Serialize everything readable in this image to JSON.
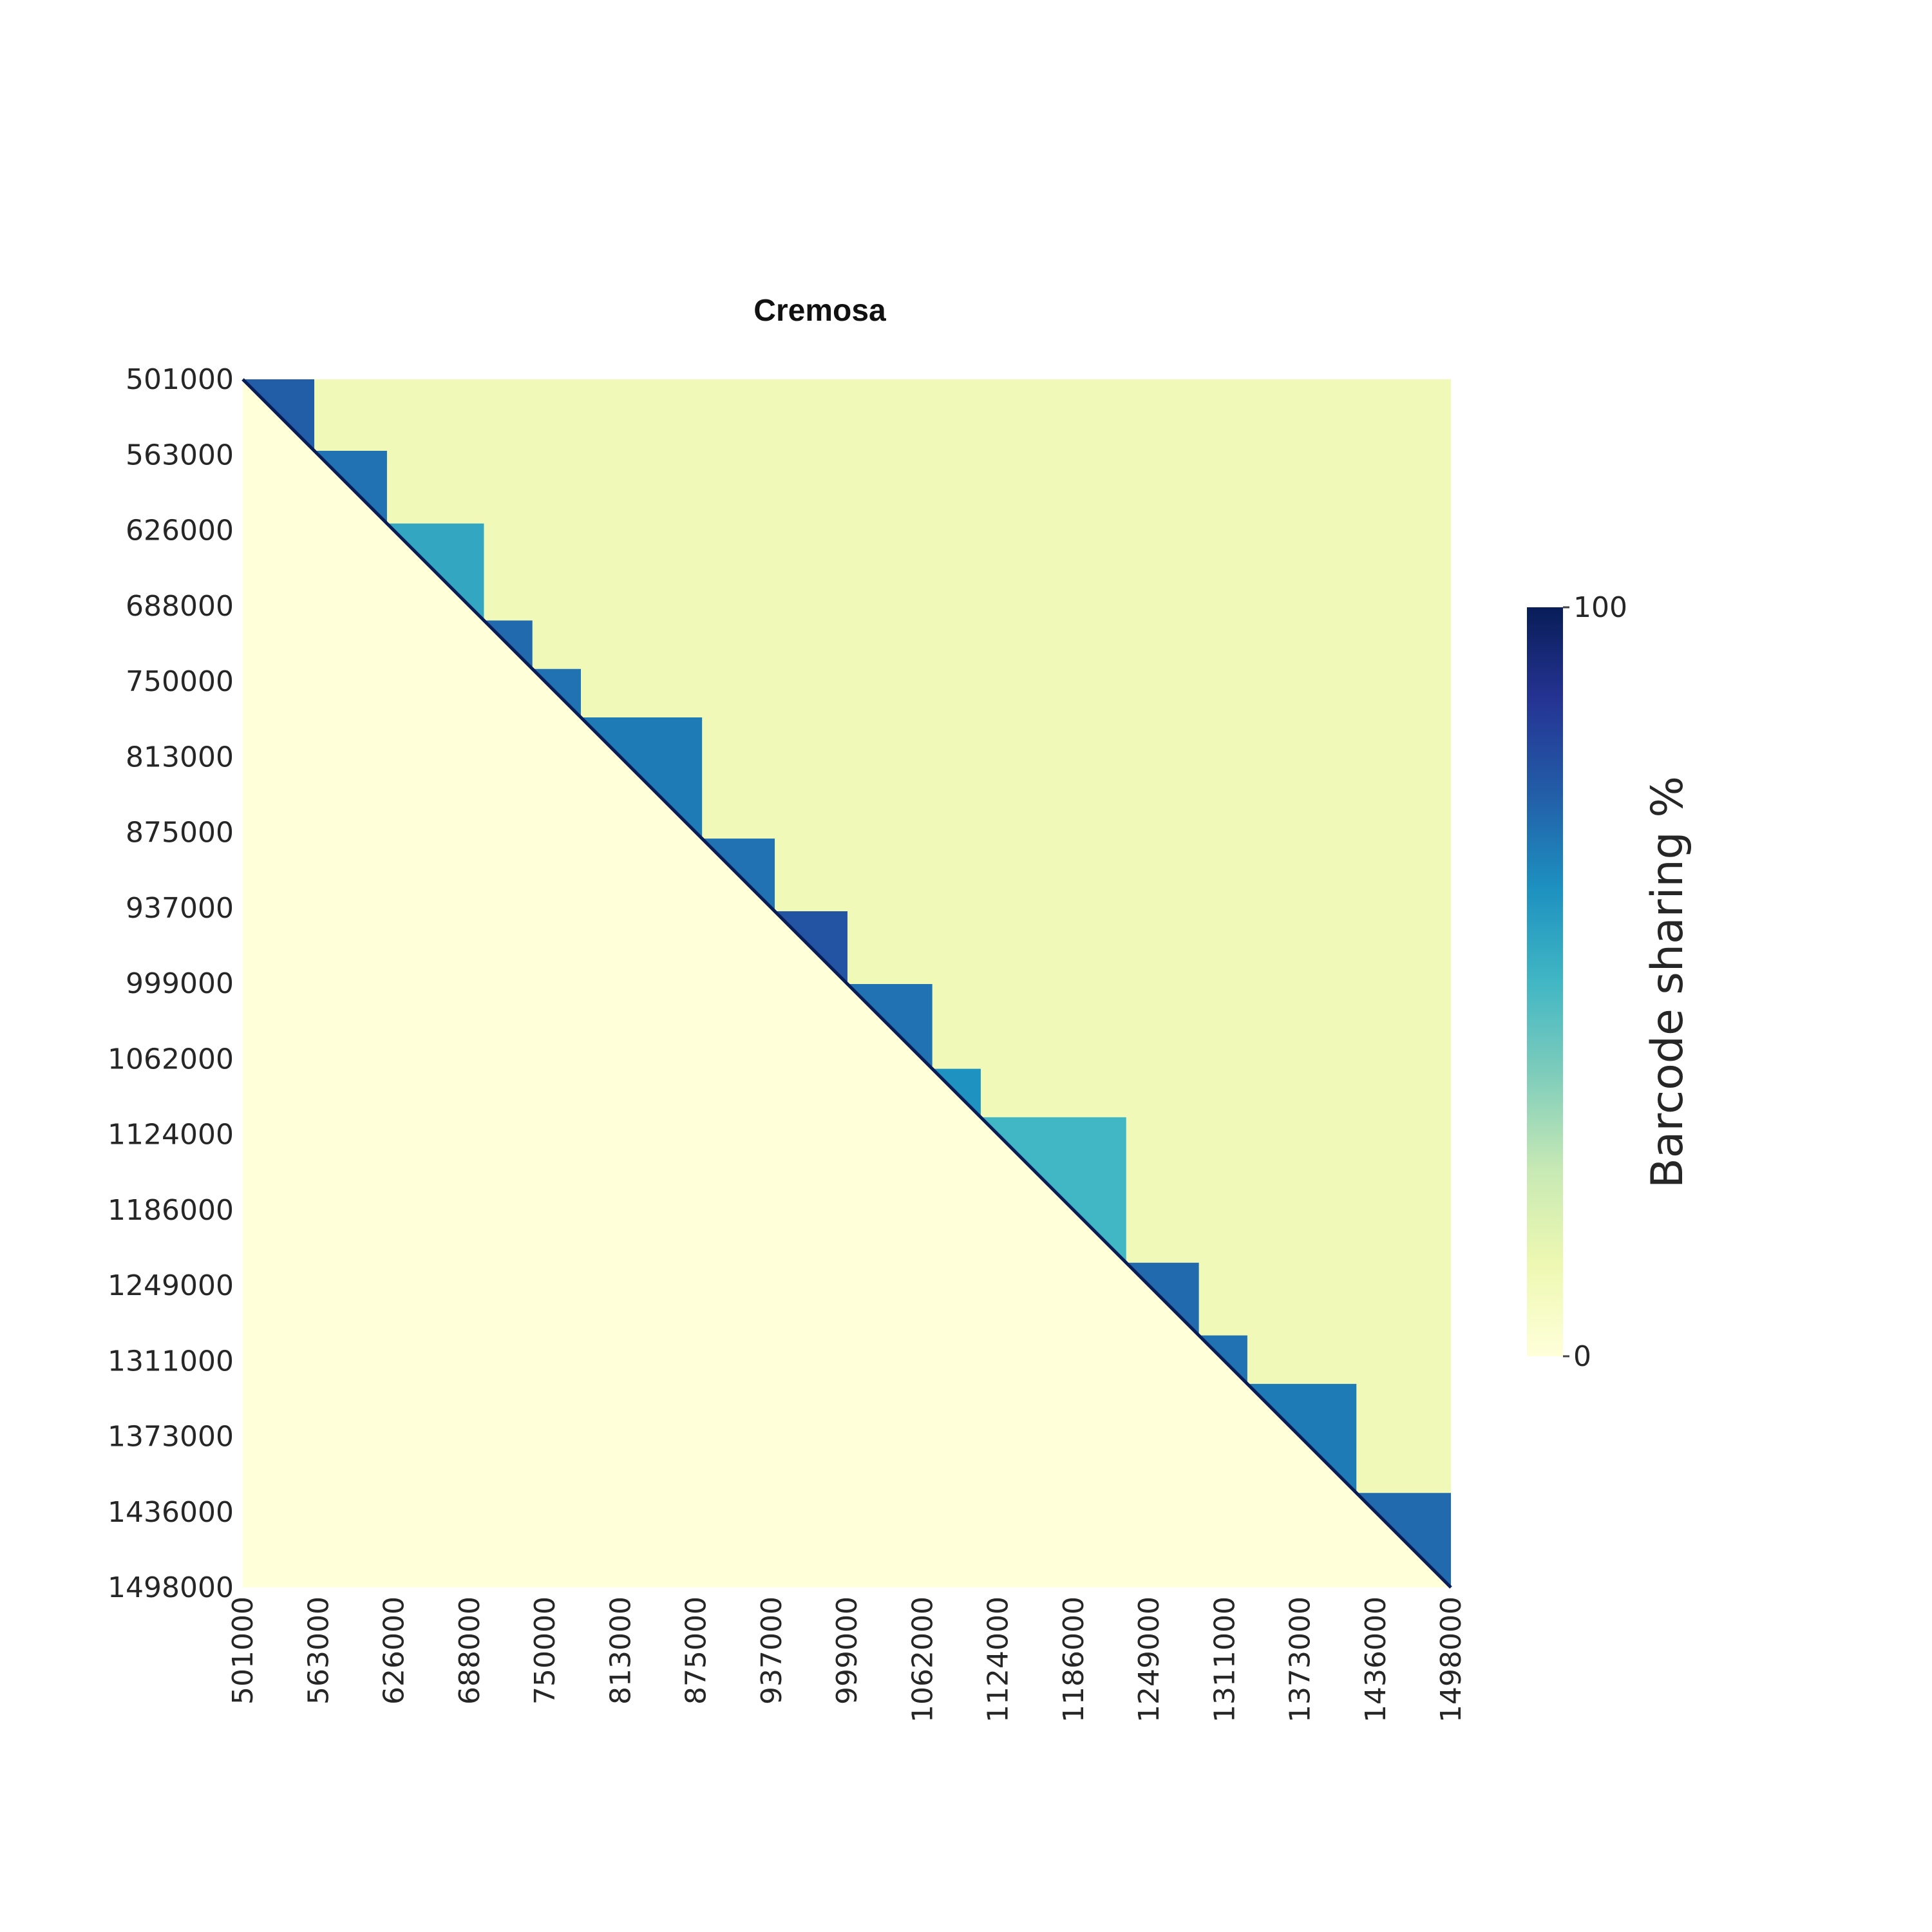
{
  "chart_data": {
    "type": "heatmap",
    "title": "Cremosa",
    "xlabel": "",
    "ylabel": "",
    "x_tick_labels": [
      "501000",
      "563000",
      "626000",
      "688000",
      "750000",
      "813000",
      "875000",
      "937000",
      "999000",
      "1062000",
      "1124000",
      "1186000",
      "1249000",
      "1311000",
      "1373000",
      "1436000",
      "1498000"
    ],
    "y_tick_labels": [
      "501000",
      "563000",
      "626000",
      "688000",
      "750000",
      "813000",
      "875000",
      "937000",
      "999000",
      "1062000",
      "1124000",
      "1186000",
      "1249000",
      "1311000",
      "1373000",
      "1436000",
      "1498000"
    ],
    "x_range": [
      501000,
      1498000
    ],
    "y_range": [
      501000,
      1498000
    ],
    "triangle": "upper",
    "lower_value": 0,
    "colorbar": {
      "label": "Barcode sharing %",
      "min": 0,
      "max": 100,
      "tick_labels": [
        "100",
        "0"
      ],
      "colormap": "YlGnBu",
      "colors": [
        "#ffffd9",
        "#edf8b1",
        "#c7e9b4",
        "#7fcdbb",
        "#41b6c4",
        "#1d91c0",
        "#225ea8",
        "#253494",
        "#081d58"
      ]
    },
    "diagonal_blocks": [
      {
        "start": 501000,
        "end": 560000,
        "value": 75
      },
      {
        "start": 560000,
        "end": 620000,
        "value": 70
      },
      {
        "start": 620000,
        "end": 700000,
        "value": 55
      },
      {
        "start": 700000,
        "end": 740000,
        "value": 72
      },
      {
        "start": 740000,
        "end": 780000,
        "value": 70
      },
      {
        "start": 780000,
        "end": 880000,
        "value": 68
      },
      {
        "start": 880000,
        "end": 940000,
        "value": 70
      },
      {
        "start": 940000,
        "end": 1000000,
        "value": 78
      },
      {
        "start": 1000000,
        "end": 1070000,
        "value": 70
      },
      {
        "start": 1070000,
        "end": 1110000,
        "value": 62
      },
      {
        "start": 1110000,
        "end": 1230000,
        "value": 50
      },
      {
        "start": 1230000,
        "end": 1290000,
        "value": 72
      },
      {
        "start": 1290000,
        "end": 1330000,
        "value": 70
      },
      {
        "start": 1330000,
        "end": 1420000,
        "value": 68
      },
      {
        "start": 1420000,
        "end": 1498000,
        "value": 72
      }
    ],
    "background_value": 10
  }
}
